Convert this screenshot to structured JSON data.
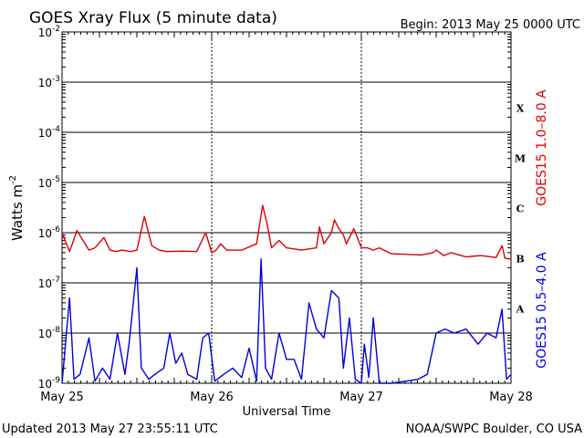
{
  "chart_data": {
    "type": "line",
    "title": "GOES Xray Flux (5 minute data)",
    "begin_label": "Begin:  2013 May 25 0000 UTC",
    "xlabel": "Universal Time",
    "ylabel": "Watts m",
    "ylabel_sup": "-2",
    "yscale": "log",
    "ylim": [
      1e-09,
      0.01
    ],
    "y_ticks": [
      {
        "mantissa": "10",
        "exp": "-2"
      },
      {
        "mantissa": "10",
        "exp": "-3"
      },
      {
        "mantissa": "10",
        "exp": "-4"
      },
      {
        "mantissa": "10",
        "exp": "-5"
      },
      {
        "mantissa": "10",
        "exp": "-6"
      },
      {
        "mantissa": "10",
        "exp": "-7"
      },
      {
        "mantissa": "10",
        "exp": "-8"
      },
      {
        "mantissa": "10",
        "exp": "-9"
      }
    ],
    "x_range_days": [
      0,
      3
    ],
    "x_ticks": [
      "May 25",
      "May 26",
      "May 27",
      "May 28"
    ],
    "flare_classes": [
      "X",
      "M",
      "C",
      "B",
      "A"
    ],
    "grid": true,
    "series": [
      {
        "name": "GOES15 1.0–8.0 A",
        "color": "#dd0000",
        "x": [
          0,
          0.05,
          0.1,
          0.18,
          0.22,
          0.28,
          0.32,
          0.36,
          0.4,
          0.46,
          0.5,
          0.55,
          0.6,
          0.65,
          0.7,
          0.8,
          0.9,
          0.96,
          1.0,
          1.03,
          1.06,
          1.1,
          1.2,
          1.3,
          1.34,
          1.37,
          1.4,
          1.45,
          1.5,
          1.6,
          1.7,
          1.72,
          1.75,
          1.8,
          1.82,
          1.85,
          1.88,
          1.9,
          1.95,
          2.0,
          2.04,
          2.08,
          2.12,
          2.2,
          2.3,
          2.4,
          2.48,
          2.5,
          2.55,
          2.6,
          2.7,
          2.8,
          2.9,
          2.94,
          2.96,
          3.0
        ],
        "y": [
          1e-06,
          4.2e-07,
          1.1e-06,
          4.5e-07,
          5e-07,
          8e-07,
          4.5e-07,
          4.2e-07,
          4.5e-07,
          4.2e-07,
          4.5e-07,
          2.1e-06,
          5.5e-07,
          4.5e-07,
          4.2e-07,
          4.3e-07,
          4.2e-07,
          1e-06,
          4e-07,
          4.5e-07,
          6e-07,
          4.5e-07,
          4.5e-07,
          6e-07,
          3.5e-06,
          1.5e-06,
          5e-07,
          7e-07,
          5e-07,
          4.5e-07,
          5e-07,
          1.3e-06,
          6e-07,
          1e-06,
          1.8e-06,
          1.2e-06,
          9e-07,
          6e-07,
          1.2e-06,
          5e-07,
          5e-07,
          4.5e-07,
          5e-07,
          3.8e-07,
          3.7e-07,
          3.6e-07,
          4e-07,
          4.5e-07,
          3.5e-07,
          4e-07,
          3.3e-07,
          3.5e-07,
          3.2e-07,
          5.5e-07,
          3.1e-07,
          3e-07
        ]
      },
      {
        "name": "GOES15 0.5–4.0 A",
        "color": "#0000dd",
        "x": [
          0,
          0.05,
          0.08,
          0.12,
          0.18,
          0.22,
          0.27,
          0.32,
          0.37,
          0.42,
          0.45,
          0.5,
          0.53,
          0.58,
          0.62,
          0.68,
          0.72,
          0.76,
          0.8,
          0.84,
          0.9,
          0.94,
          0.98,
          1.02,
          1.08,
          1.14,
          1.2,
          1.25,
          1.3,
          1.33,
          1.36,
          1.4,
          1.45,
          1.5,
          1.55,
          1.6,
          1.65,
          1.7,
          1.75,
          1.8,
          1.85,
          1.88,
          1.92,
          1.96,
          2.0,
          2.02,
          2.05,
          2.08,
          2.12,
          2.2,
          2.3,
          2.38,
          2.44,
          2.5,
          2.56,
          2.62,
          2.7,
          2.78,
          2.84,
          2.9,
          2.94,
          2.97,
          3.0
        ],
        "y": [
          1e-09,
          5e-08,
          1.2e-09,
          1.5e-09,
          8e-09,
          1.1e-09,
          2e-09,
          1.2e-09,
          1e-08,
          1.5e-09,
          7e-09,
          2e-07,
          2e-09,
          1.2e-09,
          1.5e-09,
          2e-09,
          1e-08,
          2.5e-09,
          4e-09,
          1.5e-09,
          1.2e-09,
          8e-09,
          1e-08,
          1.1e-09,
          1.5e-09,
          2e-09,
          1.3e-09,
          5e-09,
          1.1e-09,
          3e-07,
          2e-09,
          1.2e-09,
          1e-08,
          3e-09,
          3e-09,
          1.2e-09,
          4e-08,
          1.2e-08,
          8e-09,
          7e-08,
          5e-08,
          2e-09,
          2e-08,
          1.2e-09,
          1e-09,
          6e-09,
          1.3e-09,
          2e-08,
          1e-09,
          1e-09,
          1.1e-09,
          1.2e-09,
          1.5e-09,
          1e-08,
          1.2e-08,
          1e-08,
          1.2e-08,
          6e-09,
          1e-08,
          8e-09,
          3e-08,
          1.2e-09,
          1.5e-09
        ]
      }
    ]
  },
  "footer": {
    "updated": "Updated 2013 May 27 23:55:11 UTC",
    "credit": "NOAA/SWPC Boulder, CO USA"
  }
}
